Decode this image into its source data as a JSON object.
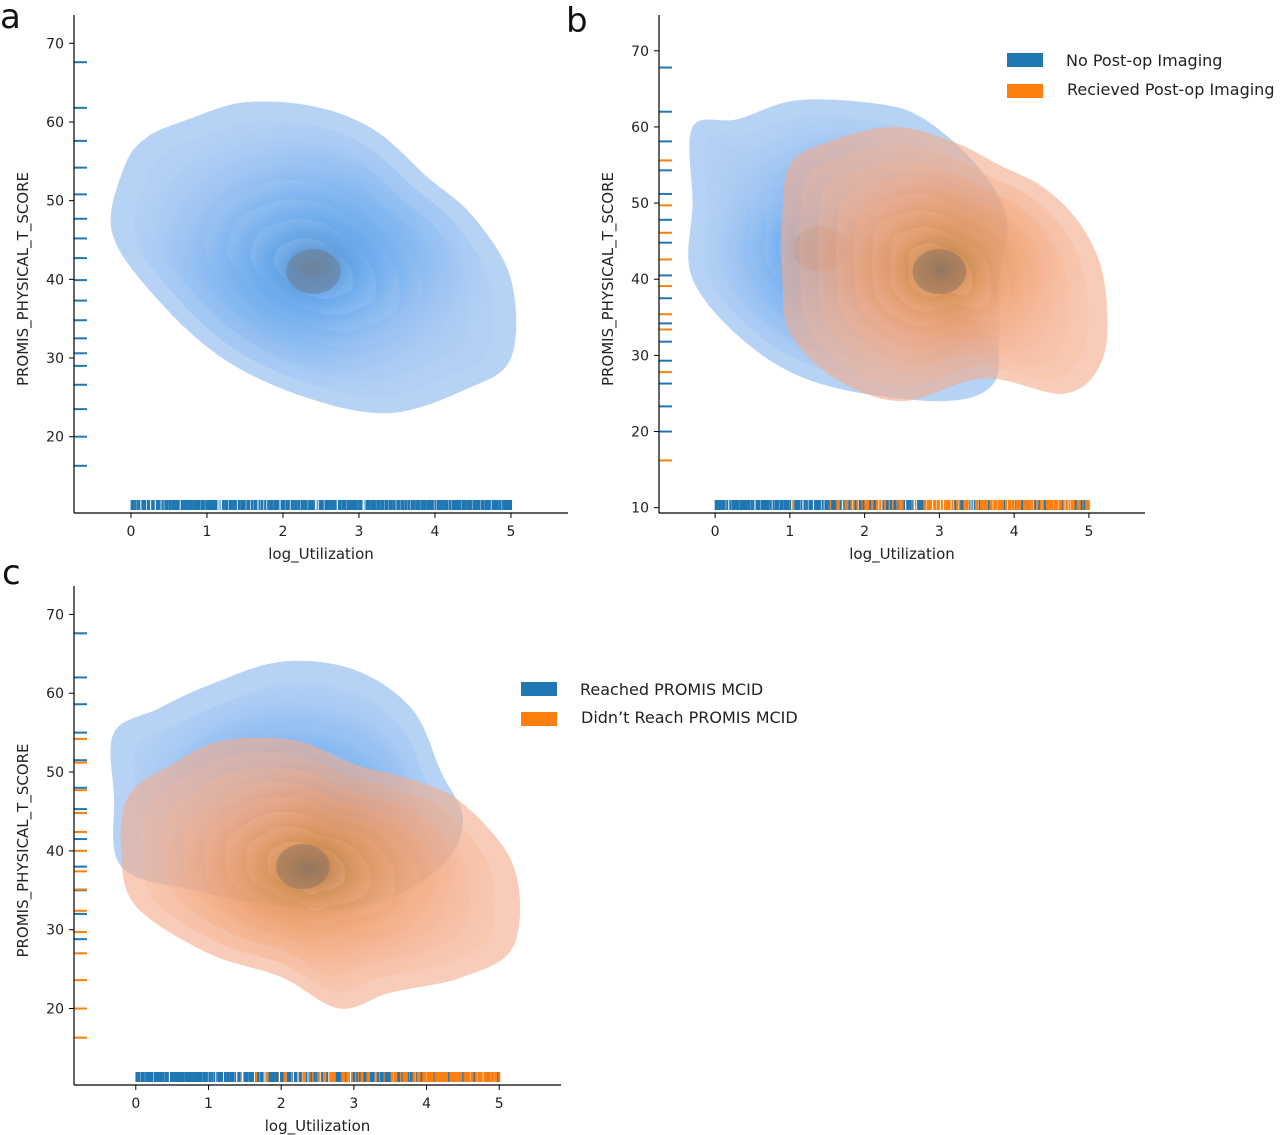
{
  "colors": {
    "blue_fill": "#5fa6ee",
    "orange_fill": "#f08a4b",
    "rug_blue": "#1f77b4",
    "rug_orange": "#ff7f0e",
    "axis": "#000000"
  },
  "chart_data": [
    {
      "panel": "a",
      "type": "kde2d",
      "xlabel": "log_Utilization",
      "ylabel": "PROMIS_PHYSICAL_T_SCORE",
      "xlim": [
        -0.75,
        5.75
      ],
      "ylim": [
        10.3,
        73.6
      ],
      "xticks": [
        0,
        1,
        2,
        3,
        4,
        5
      ],
      "yticks": [
        20,
        30,
        40,
        50,
        60,
        70
      ],
      "x_rug_range": [
        0,
        5
      ],
      "legend": null,
      "series": [
        {
          "name": "",
          "color": "blue",
          "density_peak": [
            2.4,
            41
          ],
          "outer_contour": [
            [
              0.2,
              58
            ],
            [
              0.8,
              60.5
            ],
            [
              1.5,
              62.5
            ],
            [
              2.4,
              62
            ],
            [
              3.2,
              59
            ],
            [
              3.9,
              53
            ],
            [
              4.5,
              48
            ],
            [
              5.0,
              40
            ],
            [
              5.0,
              30
            ],
            [
              4.4,
              26
            ],
            [
              3.4,
              23
            ],
            [
              2.3,
              25
            ],
            [
              1.2,
              30
            ],
            [
              0.3,
              38
            ],
            [
              -0.25,
              46
            ],
            [
              -0.1,
              54
            ]
          ],
          "rug_y": [
            16.3,
            20,
            23.5,
            26.6,
            29,
            30.6,
            32.5,
            34.8,
            37.3,
            39.9,
            42.7,
            45.2,
            47.7,
            50.8,
            54.2,
            57.6,
            61.8,
            67.6
          ]
        }
      ]
    },
    {
      "panel": "b",
      "type": "kde2d",
      "xlabel": "log_Utilization",
      "ylabel": "PROMIS_PHYSICAL_T_SCORE",
      "xlim": [
        -0.75,
        5.75
      ],
      "ylim": [
        9.3,
        74.7
      ],
      "xticks": [
        0,
        1,
        2,
        3,
        4,
        5
      ],
      "yticks": [
        10,
        20,
        30,
        40,
        50,
        60,
        70
      ],
      "x_rug_range": [
        0,
        5
      ],
      "legend": {
        "position": "top-right"
      },
      "series": [
        {
          "name": "No Post-op Imaging",
          "color": "blue",
          "density_peak": [
            1.4,
            44
          ],
          "outer_contour": [
            [
              -0.3,
              60
            ],
            [
              0.3,
              61
            ],
            [
              1.1,
              63.5
            ],
            [
              2.2,
              63
            ],
            [
              2.8,
              61
            ],
            [
              3.5,
              55
            ],
            [
              3.9,
              48
            ],
            [
              3.8,
              40
            ],
            [
              3.8,
              32
            ],
            [
              3.7,
              26
            ],
            [
              3.0,
              24
            ],
            [
              1.5,
              26
            ],
            [
              0.5,
              31
            ],
            [
              -0.3,
              40
            ],
            [
              -0.3,
              50
            ]
          ],
          "rug_y": [
            20,
            23.3,
            26.3,
            29.3,
            31.8,
            34.2,
            37.5,
            40.5,
            44.8,
            47.8,
            51.2,
            54.3,
            58.1,
            62,
            67.8
          ]
        },
        {
          "name": "Recieved Post-op Imaging",
          "color": "orange",
          "density_peak": [
            3.0,
            41
          ],
          "outer_contour": [
            [
              1.0,
              55
            ],
            [
              1.5,
              58
            ],
            [
              2.4,
              60
            ],
            [
              3.2,
              58
            ],
            [
              3.8,
              55
            ],
            [
              4.4,
              52
            ],
            [
              4.9,
              47
            ],
            [
              5.2,
              40
            ],
            [
              5.2,
              30
            ],
            [
              4.7,
              25
            ],
            [
              3.6,
              27
            ],
            [
              2.5,
              24
            ],
            [
              1.6,
              27
            ],
            [
              1.0,
              33
            ],
            [
              0.9,
              40
            ],
            [
              0.9,
              48
            ]
          ],
          "rug_y": [
            16.2,
            27.8,
            33.4,
            35.4,
            39.1,
            42.6,
            46.1,
            49.7,
            55.6
          ]
        }
      ]
    },
    {
      "panel": "c",
      "type": "kde2d",
      "xlabel": "log_Utilization",
      "ylabel": "PROMIS_PHYSICAL_T_SCORE",
      "xlim": [
        -0.85,
        5.85
      ],
      "ylim": [
        10.3,
        73.6
      ],
      "xticks": [
        0,
        1,
        2,
        3,
        4,
        5
      ],
      "yticks": [
        20,
        30,
        40,
        50,
        60,
        70
      ],
      "x_rug_range": [
        0,
        5
      ],
      "legend": {
        "position": "upper-right of plot area"
      },
      "series": [
        {
          "name": "Reached PROMIS MCID",
          "color": "blue",
          "density_peak": [
            2.4,
            40
          ],
          "outer_contour": [
            [
              -0.3,
              55
            ],
            [
              0.3,
              58
            ],
            [
              1.0,
              61
            ],
            [
              2.0,
              64
            ],
            [
              3.0,
              63
            ],
            [
              3.8,
              58
            ],
            [
              4.2,
              50
            ],
            [
              4.5,
              44
            ],
            [
              4.2,
              38
            ],
            [
              3.2,
              33
            ],
            [
              2.0,
              33
            ],
            [
              0.8,
              35
            ],
            [
              -0.2,
              38
            ],
            [
              -0.3,
              47
            ]
          ],
          "rug_y": [
            28.8,
            32,
            35,
            38,
            41.5,
            45.3,
            48,
            51.5,
            55,
            58.6,
            62,
            67.6
          ]
        },
        {
          "name": "Didn’t Reach PROMIS MCID",
          "color": "orange",
          "density_peak": [
            2.3,
            38
          ],
          "outer_contour": [
            [
              -0.1,
              47
            ],
            [
              0.5,
              51
            ],
            [
              1.2,
              54
            ],
            [
              2.2,
              54
            ],
            [
              3.0,
              51
            ],
            [
              3.8,
              49
            ],
            [
              4.5,
              46
            ],
            [
              5.2,
              38
            ],
            [
              5.2,
              28
            ],
            [
              4.5,
              24
            ],
            [
              3.5,
              22
            ],
            [
              2.8,
              20
            ],
            [
              2.0,
              24
            ],
            [
              1.0,
              27
            ],
            [
              0.0,
              33
            ],
            [
              -0.2,
              40
            ]
          ],
          "rug_y": [
            16.3,
            20,
            23.6,
            27,
            29.7,
            32.4,
            35.1,
            37.4,
            40,
            42.4,
            44.8,
            47.7,
            51.2,
            54.2
          ]
        }
      ]
    }
  ],
  "panels": {
    "a": {
      "letter": "a"
    },
    "b": {
      "letter": "b"
    },
    "c": {
      "letter": "c"
    }
  }
}
